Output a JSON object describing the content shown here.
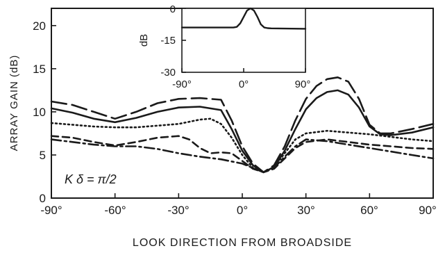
{
  "chart_data": [
    {
      "type": "line",
      "title": "",
      "xlabel": "LOOK DIRECTION FROM BROADSIDE",
      "ylabel": "ARRAY GAIN (dB)",
      "xlim": [
        -90,
        90
      ],
      "ylim": [
        0,
        22
      ],
      "xticks": [
        "-90°",
        "-60°",
        "-30°",
        "0°",
        "30°",
        "60°",
        "90°"
      ],
      "yticks": [
        "0",
        "5",
        "10",
        "15",
        "20"
      ],
      "grid": false,
      "annotation": "K δ = π/2",
      "series": [
        {
          "style": "long-dash",
          "x": [
            -90,
            -80,
            -70,
            -60,
            -50,
            -40,
            -30,
            -20,
            -10,
            -5,
            0,
            5,
            10,
            15,
            20,
            25,
            30,
            35,
            40,
            45,
            50,
            55,
            60,
            65,
            70,
            80,
            90
          ],
          "values": [
            11.2,
            10.8,
            10.0,
            9.2,
            10.0,
            11.0,
            11.5,
            11.6,
            11.4,
            9.0,
            6.0,
            4.0,
            3.0,
            3.8,
            6.0,
            9.0,
            11.5,
            13.0,
            13.8,
            14.0,
            13.5,
            11.5,
            8.5,
            7.5,
            7.5,
            8.0,
            8.6
          ]
        },
        {
          "style": "solid",
          "x": [
            -90,
            -80,
            -70,
            -60,
            -50,
            -40,
            -30,
            -20,
            -10,
            -5,
            0,
            5,
            10,
            15,
            20,
            25,
            30,
            35,
            40,
            45,
            50,
            55,
            60,
            65,
            70,
            80,
            90
          ],
          "values": [
            10.4,
            9.9,
            9.2,
            8.8,
            9.3,
            10.0,
            10.5,
            10.6,
            10.2,
            8.0,
            5.5,
            3.8,
            3.0,
            3.6,
            5.5,
            8.0,
            10.3,
            11.6,
            12.3,
            12.5,
            12.0,
            10.5,
            8.3,
            7.4,
            7.3,
            7.6,
            8.2
          ]
        },
        {
          "style": "dotted",
          "x": [
            -90,
            -80,
            -70,
            -60,
            -50,
            -40,
            -30,
            -20,
            -15,
            -10,
            -5,
            0,
            5,
            10,
            15,
            20,
            25,
            30,
            40,
            50,
            60,
            70,
            80,
            90
          ],
          "values": [
            8.7,
            8.5,
            8.3,
            8.2,
            8.2,
            8.4,
            8.6,
            9.1,
            9.2,
            8.6,
            7.0,
            5.0,
            3.5,
            3.0,
            3.6,
            5.2,
            6.8,
            7.5,
            7.8,
            7.6,
            7.4,
            7.1,
            6.8,
            6.6
          ]
        },
        {
          "style": "short-dash",
          "x": [
            -90,
            -80,
            -70,
            -60,
            -50,
            -40,
            -30,
            -25,
            -20,
            -15,
            -10,
            -5,
            0,
            5,
            10,
            15,
            20,
            25,
            30,
            40,
            50,
            60,
            70,
            80,
            90
          ],
          "values": [
            7.2,
            7.0,
            6.5,
            6.1,
            6.5,
            7.0,
            7.2,
            6.8,
            5.8,
            5.2,
            5.3,
            5.2,
            4.3,
            3.4,
            3.0,
            3.4,
            4.6,
            5.8,
            6.5,
            6.8,
            6.5,
            6.2,
            6.0,
            5.8,
            5.7
          ]
        },
        {
          "style": "dash-dot",
          "x": [
            -90,
            -80,
            -70,
            -60,
            -50,
            -40,
            -30,
            -20,
            -10,
            0,
            5,
            10,
            15,
            20,
            25,
            30,
            40,
            50,
            60,
            70,
            80,
            90
          ],
          "values": [
            6.8,
            6.5,
            6.2,
            6.0,
            6.0,
            5.7,
            5.2,
            4.8,
            4.5,
            4.0,
            3.5,
            3.0,
            3.5,
            4.8,
            6.0,
            6.8,
            6.6,
            6.2,
            5.8,
            5.4,
            5.0,
            4.6
          ]
        }
      ]
    },
    {
      "type": "line",
      "title": "",
      "xlabel": "",
      "ylabel": "dB",
      "xlim": [
        -90,
        90
      ],
      "ylim": [
        -30,
        0
      ],
      "xticks": [
        "-90°",
        "0°",
        "90°"
      ],
      "yticks": [
        "0",
        "-15",
        "-30"
      ],
      "series": [
        {
          "style": "solid",
          "x": [
            -90,
            -60,
            -30,
            -15,
            -10,
            -5,
            0,
            5,
            10,
            15,
            20,
            25,
            30,
            35,
            40,
            60,
            90
          ],
          "values": [
            -9,
            -9,
            -9,
            -9,
            -8.7,
            -7,
            -4,
            -1,
            0,
            -1,
            -4,
            -7.5,
            -9,
            -9.3,
            -9.4,
            -9.5,
            -9.6
          ]
        }
      ]
    }
  ]
}
